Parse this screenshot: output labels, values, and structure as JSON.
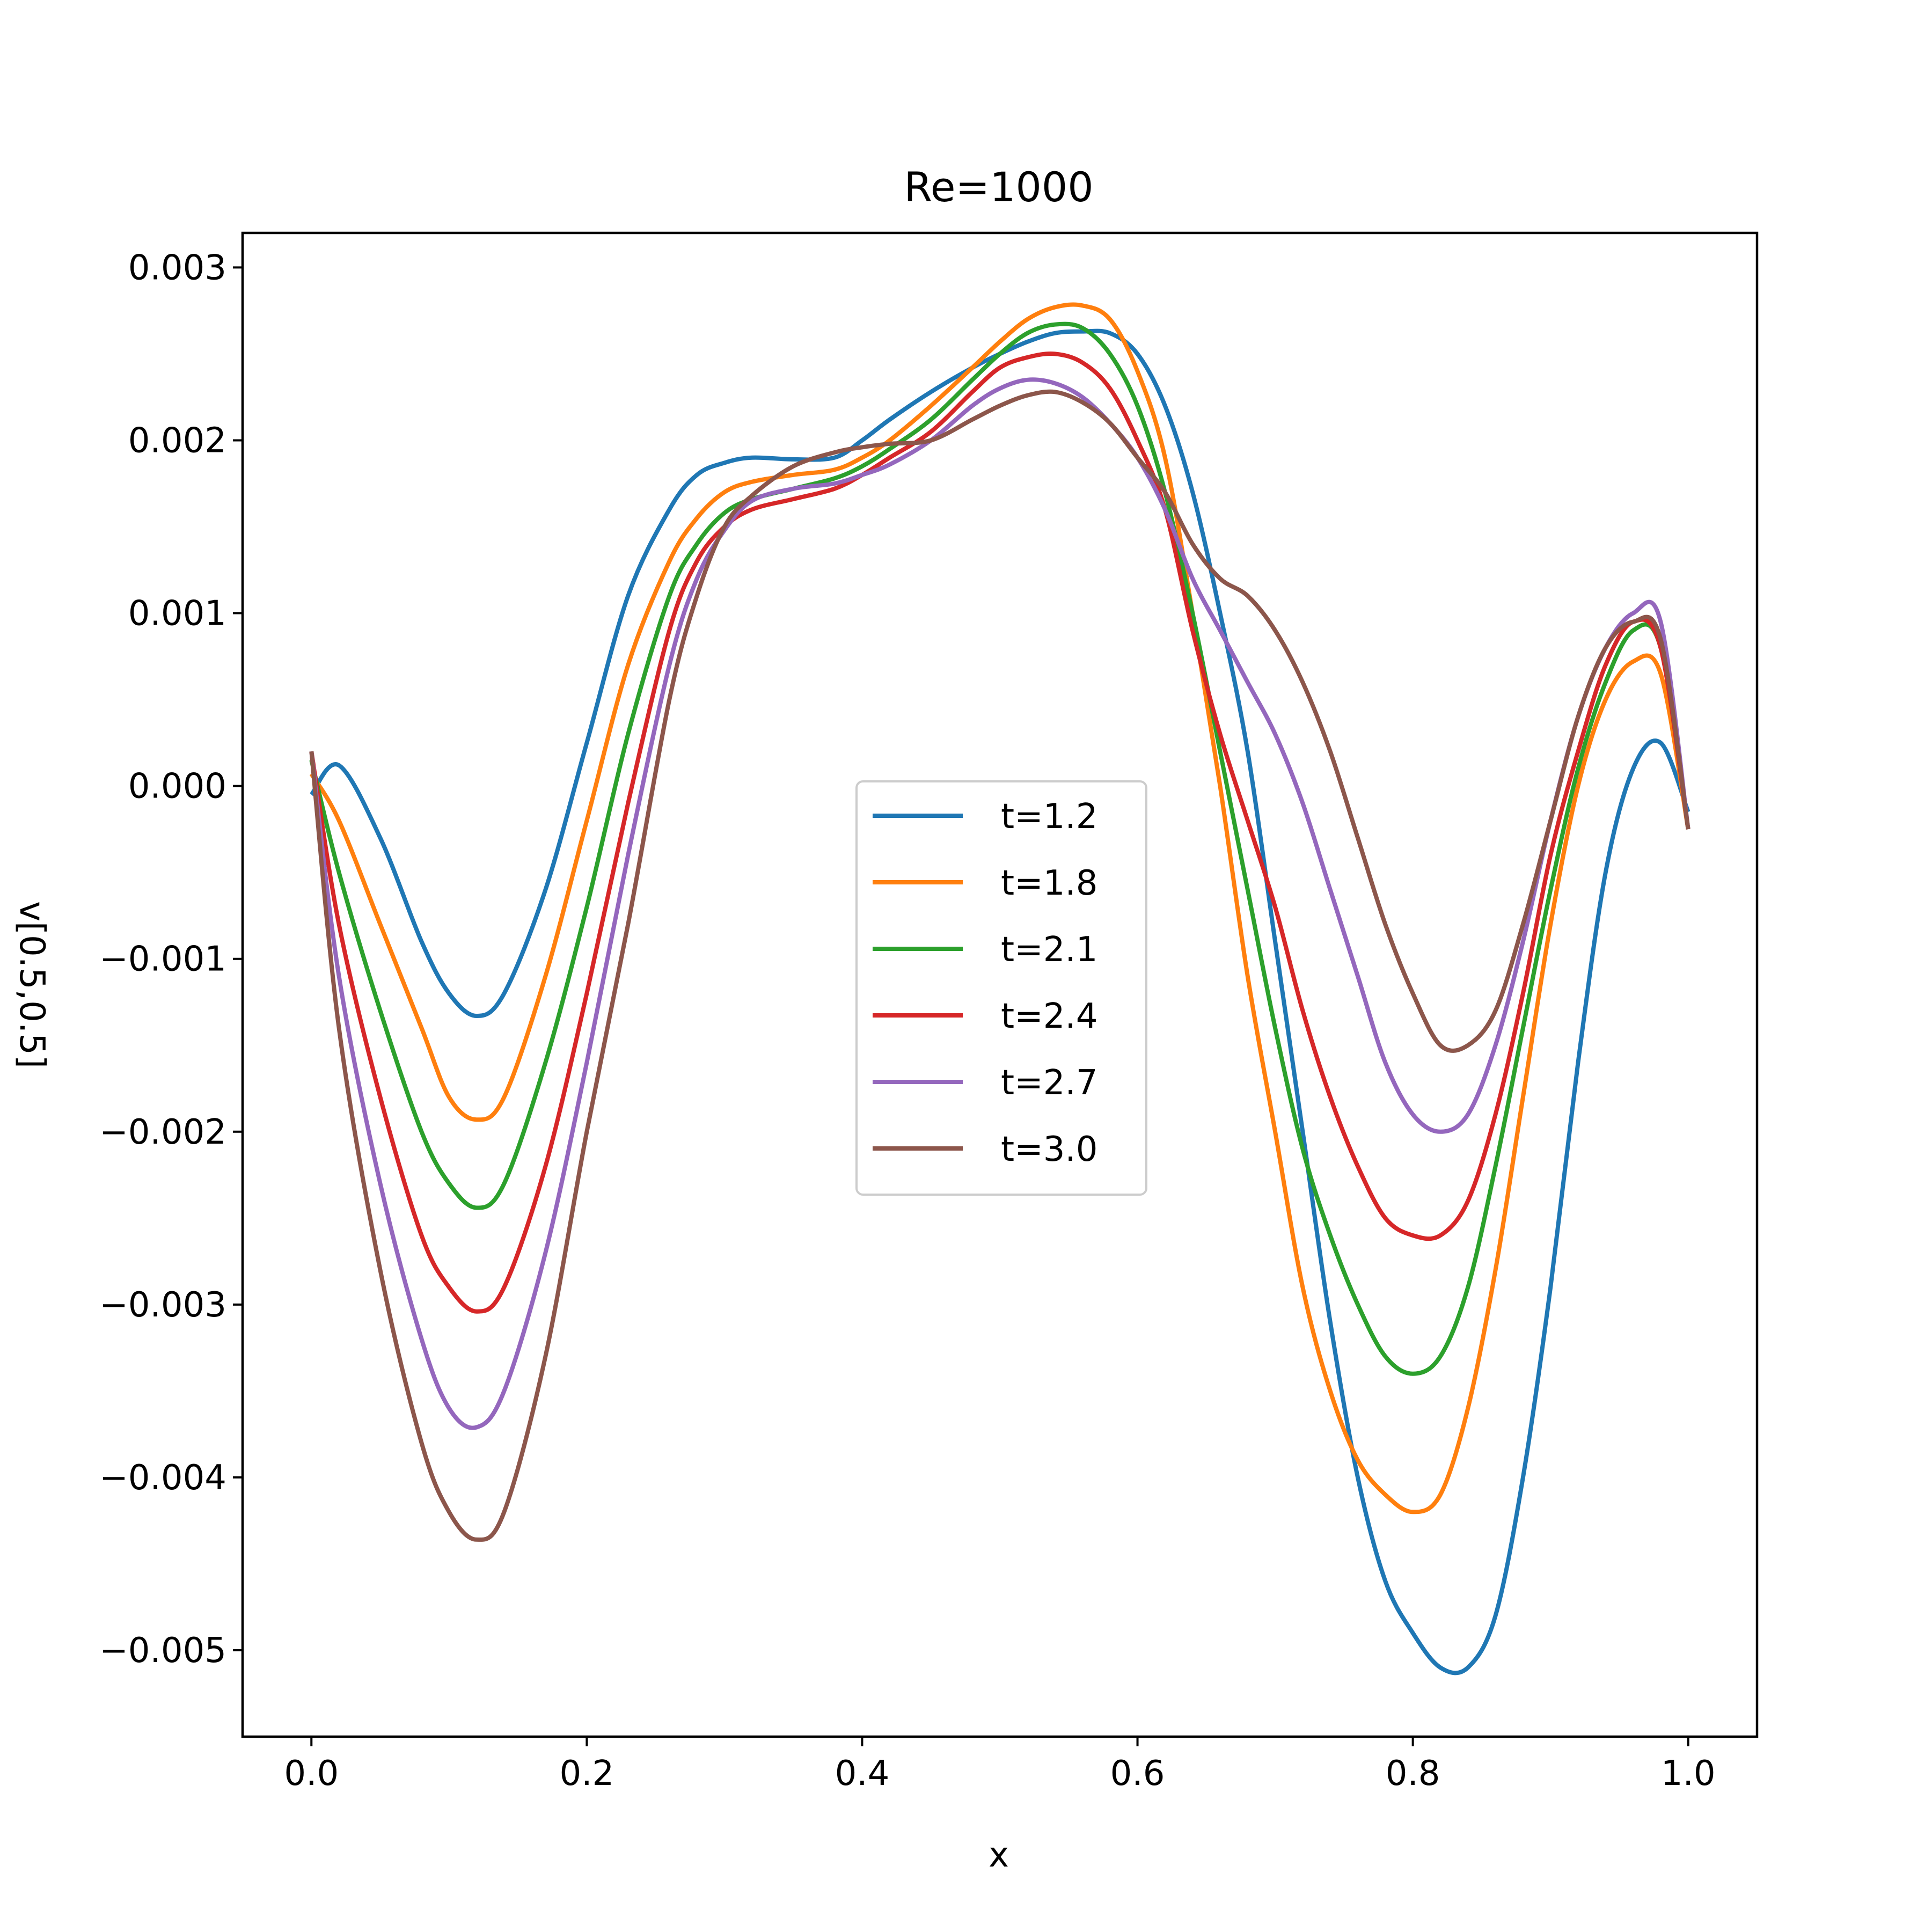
{
  "chart_data": {
    "type": "line",
    "title": "Re=1000",
    "xlabel": "x",
    "ylabel": "v[0.5,0.5]",
    "xlim": [
      -0.05,
      1.05
    ],
    "ylim": [
      -0.0055,
      0.0032
    ],
    "xticks": [
      0.0,
      0.2,
      0.4,
      0.6,
      0.8,
      1.0
    ],
    "xtick_labels": [
      "0.0",
      "0.2",
      "0.4",
      "0.6",
      "0.8",
      "1.0"
    ],
    "yticks": [
      0.003,
      0.002,
      0.001,
      0.0,
      -0.001,
      -0.002,
      -0.003,
      -0.004,
      -0.005
    ],
    "ytick_labels": [
      "0.003",
      "0.002",
      "0.001",
      "0.000",
      "−0.001",
      "−0.002",
      "−0.003",
      "−0.004",
      "−0.005"
    ],
    "grid": false,
    "legend_position": "center",
    "x": [
      0.0,
      0.02,
      0.05,
      0.08,
      0.1,
      0.12,
      0.14,
      0.17,
      0.2,
      0.23,
      0.26,
      0.28,
      0.3,
      0.32,
      0.35,
      0.38,
      0.4,
      0.42,
      0.45,
      0.48,
      0.5,
      0.52,
      0.54,
      0.56,
      0.58,
      0.6,
      0.62,
      0.64,
      0.66,
      0.68,
      0.7,
      0.72,
      0.74,
      0.76,
      0.78,
      0.8,
      0.82,
      0.84,
      0.86,
      0.88,
      0.9,
      0.92,
      0.94,
      0.96,
      0.98,
      1.0
    ],
    "series": [
      {
        "name": "t=1.2",
        "color": "#1f77b4",
        "values": [
          -5e-05,
          0.00012,
          -0.0003,
          -0.0009,
          -0.0012,
          -0.00133,
          -0.0012,
          -0.0006,
          0.00025,
          0.0011,
          0.0016,
          0.0018,
          0.00187,
          0.0019,
          0.00189,
          0.0019,
          0.002,
          0.00212,
          0.00228,
          0.00242,
          0.0025,
          0.00257,
          0.00262,
          0.00263,
          0.00262,
          0.0025,
          0.0022,
          0.0017,
          0.001,
          0.0002,
          -0.0009,
          -0.002,
          -0.0031,
          -0.004,
          -0.0046,
          -0.0049,
          -0.0051,
          -0.0051,
          -0.0048,
          -0.004,
          -0.0029,
          -0.0016,
          -0.0005,
          0.0001,
          0.00025,
          -0.00015
        ]
      },
      {
        "name": "t=1.8",
        "color": "#ff7f0e",
        "values": [
          7e-05,
          -0.0002,
          -0.0008,
          -0.0014,
          -0.0018,
          -0.00193,
          -0.0018,
          -0.0011,
          -0.0002,
          0.0007,
          0.0013,
          0.00155,
          0.0017,
          0.00176,
          0.0018,
          0.00183,
          0.0019,
          0.002,
          0.0022,
          0.00242,
          0.00257,
          0.0027,
          0.00277,
          0.00278,
          0.0027,
          0.0024,
          0.0019,
          0.001,
          0.0,
          -0.0011,
          -0.002,
          -0.0029,
          -0.0035,
          -0.0039,
          -0.0041,
          -0.0042,
          -0.0041,
          -0.0036,
          -0.0028,
          -0.0018,
          -0.0008,
          0.0,
          0.0005,
          0.00072,
          0.00065,
          -0.00025
        ]
      },
      {
        "name": "t=2.1",
        "color": "#2ca02c",
        "values": [
          0.00015,
          -0.0005,
          -0.0013,
          -0.002,
          -0.0023,
          -0.00244,
          -0.0023,
          -0.0016,
          -0.0007,
          0.0003,
          0.0011,
          0.0014,
          0.00158,
          0.00166,
          0.00172,
          0.00178,
          0.00185,
          0.00195,
          0.00212,
          0.00235,
          0.0025,
          0.00262,
          0.00267,
          0.00265,
          0.0025,
          0.0022,
          0.0017,
          0.001,
          0.0002,
          -0.0006,
          -0.0014,
          -0.0021,
          -0.0026,
          -0.003,
          -0.0033,
          -0.0034,
          -0.0033,
          -0.0029,
          -0.0022,
          -0.0014,
          -0.0006,
          0.0001,
          0.0006,
          0.0009,
          0.0008,
          -0.00025
        ]
      },
      {
        "name": "t=2.4",
        "color": "#d62728",
        "values": [
          0.0002,
          -0.0008,
          -0.0018,
          -0.0026,
          -0.0029,
          -0.00304,
          -0.0029,
          -0.0022,
          -0.0012,
          -0.0001,
          0.0009,
          0.0013,
          0.0015,
          0.0016,
          0.00166,
          0.00172,
          0.0018,
          0.0019,
          0.00205,
          0.00228,
          0.00242,
          0.00248,
          0.0025,
          0.00245,
          0.0023,
          0.002,
          0.0016,
          0.0009,
          0.0003,
          -0.0002,
          -0.0007,
          -0.0013,
          -0.0018,
          -0.0022,
          -0.0025,
          -0.0026,
          -0.0026,
          -0.0024,
          -0.0019,
          -0.0012,
          -0.0004,
          0.0002,
          0.0007,
          0.00095,
          0.0008,
          -0.00025
        ]
      },
      {
        "name": "t=2.7",
        "color": "#9467bd",
        "values": [
          0.0002,
          -0.0011,
          -0.0023,
          -0.0032,
          -0.0036,
          -0.00371,
          -0.0035,
          -0.0027,
          -0.0016,
          -0.0004,
          0.0007,
          0.0012,
          0.00148,
          0.00165,
          0.00172,
          0.00175,
          0.0018,
          0.00186,
          0.002,
          0.0022,
          0.0023,
          0.00235,
          0.00233,
          0.00225,
          0.0021,
          0.0019,
          0.0016,
          0.0012,
          0.0009,
          0.0006,
          0.0003,
          -0.0001,
          -0.0006,
          -0.0011,
          -0.0016,
          -0.0019,
          -0.002,
          -0.0019,
          -0.0015,
          -0.0009,
          -0.0002,
          0.0004,
          0.0008,
          0.001,
          0.00095,
          -0.00025
        ]
      },
      {
        "name": "t=3.0",
        "color": "#8c564b",
        "values": [
          0.0002,
          -0.0014,
          -0.0028,
          -0.0038,
          -0.0042,
          -0.00436,
          -0.0042,
          -0.0033,
          -0.002,
          -0.0008,
          0.0005,
          0.0011,
          0.0015,
          0.00168,
          0.00185,
          0.00193,
          0.00196,
          0.00198,
          0.002,
          0.00212,
          0.0022,
          0.00226,
          0.00228,
          0.00222,
          0.0021,
          0.0019,
          0.0017,
          0.0014,
          0.0012,
          0.0011,
          0.0009,
          0.0006,
          0.0002,
          -0.0003,
          -0.0008,
          -0.0012,
          -0.0015,
          -0.0015,
          -0.0013,
          -0.0008,
          -0.0002,
          0.0004,
          0.0008,
          0.00095,
          0.00085,
          -0.00025
        ]
      }
    ]
  }
}
